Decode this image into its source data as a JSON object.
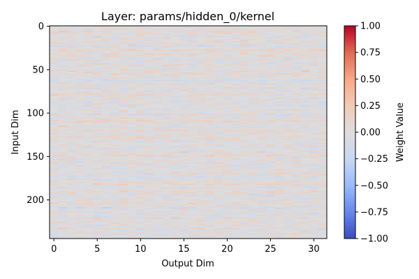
{
  "chart_data": {
    "type": "heatmap",
    "title": "Layer: params/hidden_0/kernel",
    "xlabel": "Output Dim",
    "ylabel": "Input Dim",
    "colorbar_label": "Weight Value",
    "colormap": "coolwarm",
    "colormap_stops": [
      "#3b4cc0",
      "#6788ee",
      "#9abbff",
      "#c9d7f0",
      "#dddddd",
      "#f2cbb7",
      "#f7a889",
      "#e26952",
      "#b40426"
    ],
    "rows": 245,
    "cols": 32,
    "value_range": [
      -1.0,
      1.0
    ],
    "typical_value_range": [
      -0.5,
      0.5
    ],
    "xlim": [
      -0.5,
      31.5
    ],
    "ylim": [
      244.5,
      -0.5
    ],
    "x_ticks": [
      0,
      5,
      10,
      15,
      20,
      25,
      30
    ],
    "x_tick_labels": [
      "0",
      "5",
      "10",
      "15",
      "20",
      "25",
      "30"
    ],
    "y_ticks": [
      0,
      50,
      100,
      150,
      200
    ],
    "y_tick_labels": [
      "0",
      "50",
      "100",
      "150",
      "200"
    ],
    "colorbar_ticks": [
      -1.0,
      -0.75,
      -0.5,
      -0.25,
      0.0,
      0.25,
      0.5,
      0.75,
      1.0
    ],
    "colorbar_tick_labels": [
      "−1.00",
      "−0.75",
      "−0.50",
      "−0.25",
      "0.00",
      "0.25",
      "0.50",
      "0.75",
      "1.00"
    ],
    "grid": false
  }
}
